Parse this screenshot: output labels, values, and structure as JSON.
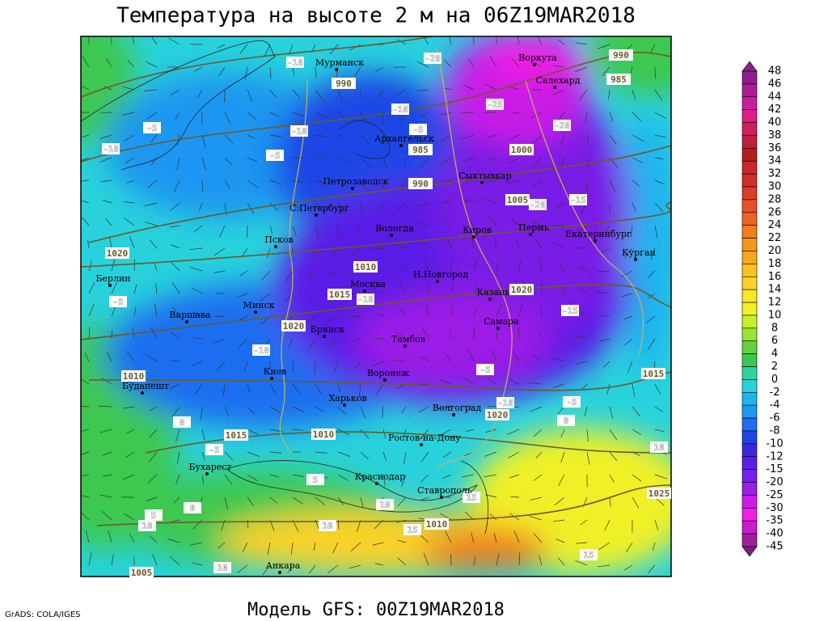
{
  "header": {
    "title": "Температура на высоте 2 м на 06Z19MAR2018"
  },
  "map": {
    "cities": [
      "Мурманск",
      "Воркута",
      "Салехард",
      "Архангельск",
      "Петрозаводск",
      "Сыктывкар",
      "С.Петербург",
      "Вологда",
      "Киров",
      "Пермь",
      "Екатеринбург",
      "Курган",
      "Псков",
      "Н.Новгород",
      "Москва",
      "Казань",
      "Берлин",
      "Минск",
      "Варшава",
      "Брянск",
      "Самара",
      "Тамбов",
      "Киев",
      "Воронеж",
      "Будапешт",
      "Харьков",
      "Волгоград",
      "Ростов-на-Дону",
      "Бухарест",
      "Краснодар",
      "Ставрополь",
      "Анкара"
    ],
    "contour_labels": [
      990,
      985,
      990,
      1000,
      1005,
      1010,
      1015,
      1020,
      1020,
      1020,
      1010,
      1015,
      1010,
      1020,
      1015,
      1010,
      985,
      990,
      1005,
      1025,
      -10,
      -20,
      -25,
      -10,
      -20,
      -5,
      -10,
      -5,
      -10,
      -5,
      -15,
      -20,
      -10,
      -15,
      -5,
      -10,
      -5,
      -10,
      -5,
      0,
      0,
      -5,
      10,
      5,
      15,
      10,
      0,
      5,
      10,
      10,
      15,
      15,
      10
    ]
  },
  "colorbar": [
    {
      "value": 48,
      "color": "#8c1e8c"
    },
    {
      "value": 46,
      "color": "#a81e96"
    },
    {
      "value": 44,
      "color": "#c81ea0"
    },
    {
      "value": 42,
      "color": "#dc1e82"
    },
    {
      "value": 40,
      "color": "#d21e5a"
    },
    {
      "value": 38,
      "color": "#be1e3c"
    },
    {
      "value": 36,
      "color": "#b41e1e"
    },
    {
      "value": 34,
      "color": "#c82828"
    },
    {
      "value": 32,
      "color": "#d22d2d"
    },
    {
      "value": 30,
      "color": "#dc3c28"
    },
    {
      "value": 28,
      "color": "#e65028"
    },
    {
      "value": 26,
      "color": "#eb6423"
    },
    {
      "value": 24,
      "color": "#f07d1e"
    },
    {
      "value": 22,
      "color": "#f5961e"
    },
    {
      "value": 20,
      "color": "#f5aa1e"
    },
    {
      "value": 18,
      "color": "#fac31e"
    },
    {
      "value": 16,
      "color": "#fad228"
    },
    {
      "value": 14,
      "color": "#fae628"
    },
    {
      "value": 12,
      "color": "#f0f028"
    },
    {
      "value": 10,
      "color": "#c8f028"
    },
    {
      "value": 8,
      "color": "#96e632"
    },
    {
      "value": 6,
      "color": "#64d23c"
    },
    {
      "value": 4,
      "color": "#3cc850"
    },
    {
      "value": 2,
      "color": "#32d2a0"
    },
    {
      "value": 0,
      "color": "#28d2dc"
    },
    {
      "value": -2,
      "color": "#1eb4f0"
    },
    {
      "value": -4,
      "color": "#1e96f0"
    },
    {
      "value": -6,
      "color": "#1e6ef0"
    },
    {
      "value": -8,
      "color": "#1e46e6"
    },
    {
      "value": -10,
      "color": "#3c28dc"
    },
    {
      "value": -12,
      "color": "#5a1ee6"
    },
    {
      "value": -15,
      "color": "#781ee6"
    },
    {
      "value": -20,
      "color": "#9a1ee6"
    },
    {
      "value": -25,
      "color": "#c81ee6"
    },
    {
      "value": -30,
      "color": "#f01ee6"
    },
    {
      "value": -35,
      "color": "#c81ec8"
    },
    {
      "value": -40,
      "color": "#a01e9a"
    },
    {
      "value": -45,
      "color": "#7a1e7a"
    }
  ],
  "footer": {
    "model": "Модель GFS: 00Z19MAR2018",
    "credit": "GrADS: COLA/IGES"
  }
}
